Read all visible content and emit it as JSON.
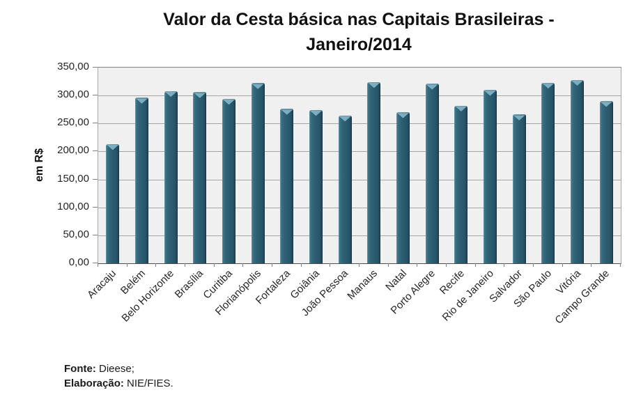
{
  "title": {
    "line1": "Valor da Cesta básica nas Capitais Brasileiras -",
    "line2": "Janeiro/2014"
  },
  "chart_data": {
    "type": "bar",
    "title": "Valor da Cesta básica nas Capitais Brasileiras - Janeiro/2014",
    "xlabel": "",
    "ylabel": "em R$",
    "ylim": [
      0,
      350
    ],
    "ytick_step": 50,
    "grid": true,
    "legend": false,
    "plot_bg": "#f0f0f0",
    "bar_color": "#2c5d70",
    "bar_highlight": "#7fb2c3",
    "y_tick_values": [
      0,
      50,
      100,
      150,
      200,
      250,
      300,
      350
    ],
    "y_tick_labels": [
      "0,00",
      "50,00",
      "100,00",
      "150,00",
      "200,00",
      "250,00",
      "300,00",
      "350,00"
    ],
    "categories": [
      "Aracaju",
      "Belém",
      "Belo Horizonte",
      "Brasília",
      "Curitiba",
      "Florianópolis",
      "Fortaleza",
      "Goiânia",
      "João Pessoa",
      "Manaus",
      "Natal",
      "Porto Alegre",
      "Recife",
      "Rio de Janeiro",
      "Salvador",
      "São Paulo",
      "Vitória",
      "Campo Grande"
    ],
    "values": [
      213,
      296,
      308,
      306,
      294,
      322,
      276,
      274,
      264,
      324,
      270,
      321,
      282,
      310,
      266,
      323,
      328,
      290
    ]
  },
  "footer": {
    "fonte_label": "Fonte:",
    "fonte_value": " Dieese;",
    "elaboracao_label": "Elaboração:",
    "elaboracao_value": " NIE/FIES."
  }
}
